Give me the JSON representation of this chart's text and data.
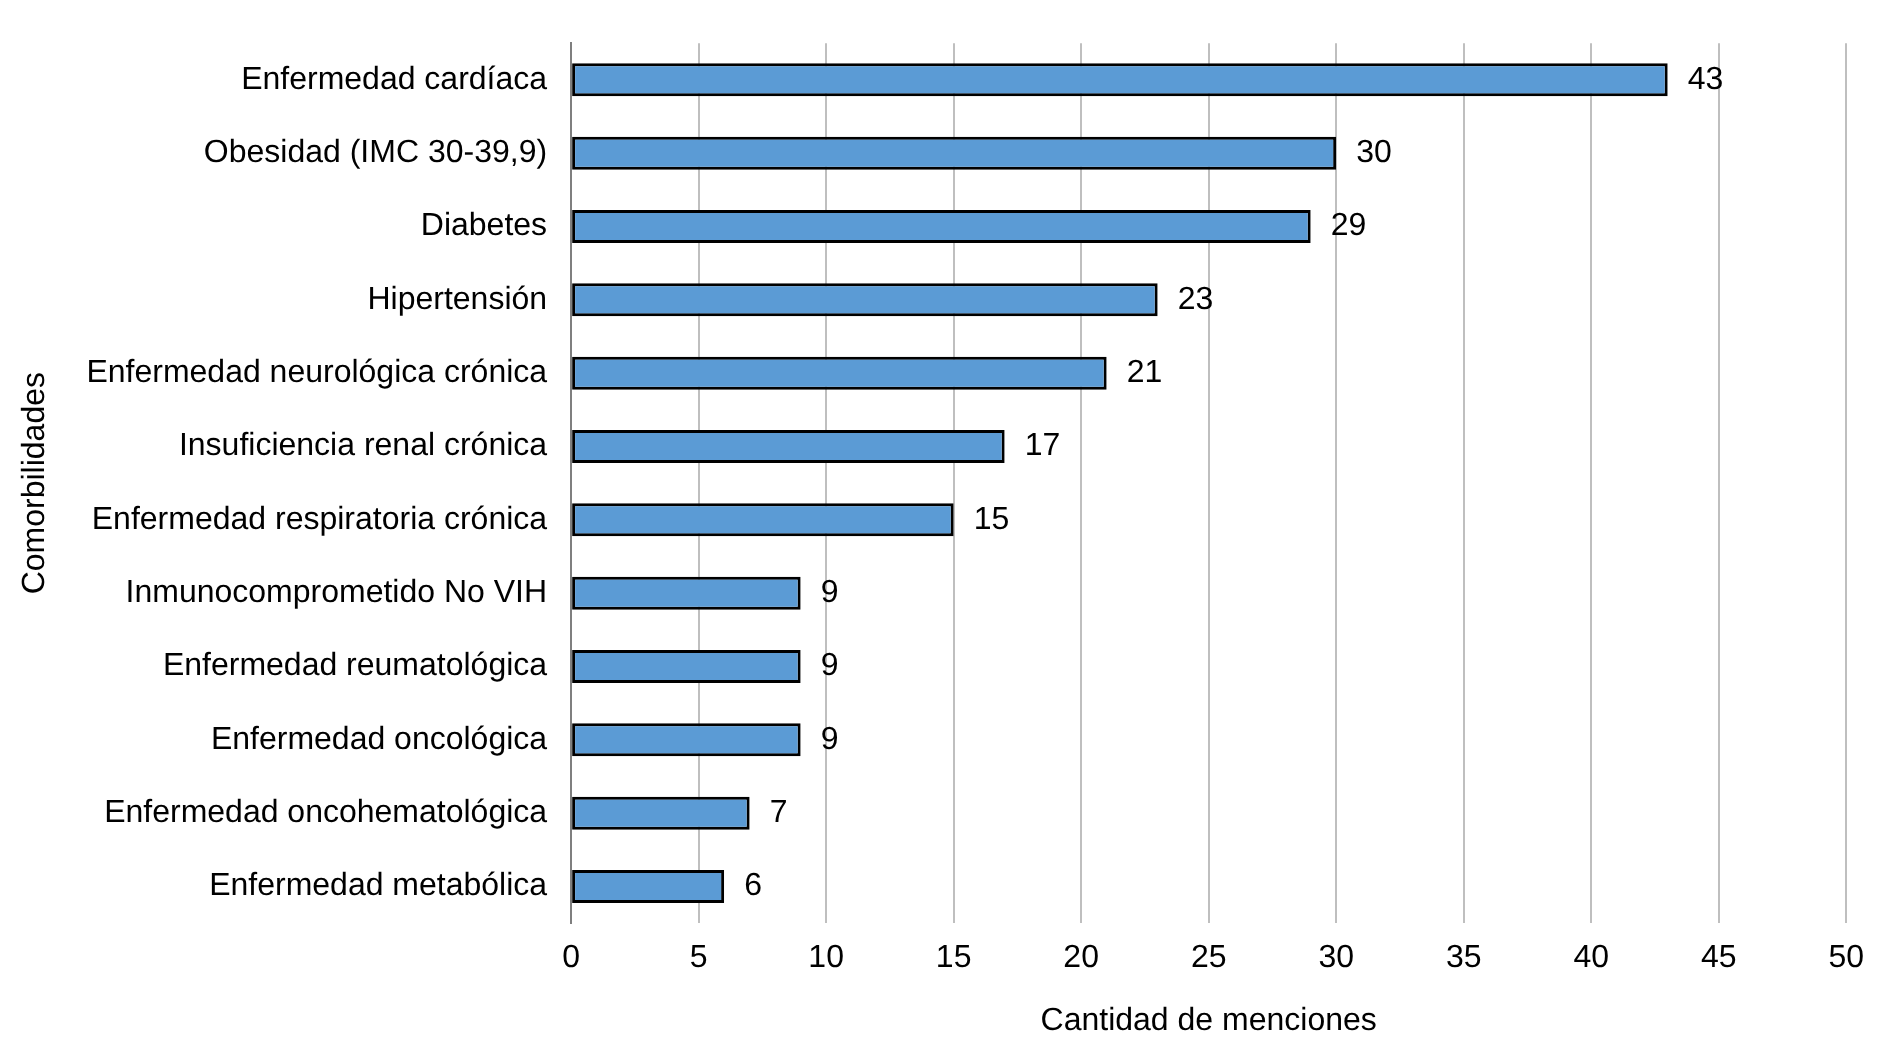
{
  "chart_data": {
    "type": "bar",
    "orientation": "horizontal",
    "xlabel": "Cantidad de menciones",
    "ylabel": "Comorbilidades",
    "categories": [
      "Enfermedad cardíaca",
      "Obesidad (IMC 30-39,9)",
      "Diabetes",
      "Hipertensión",
      "Enfermedad neurológica crónica",
      "Insuficiencia renal crónica",
      "Enfermedad respiratoria crónica",
      "Inmunocomprometido No VIH",
      "Enfermedad reumatológica",
      "Enfermedad oncológica",
      "Enfermedad oncohematológica",
      "Enfermedad metabólica"
    ],
    "values": [
      43,
      30,
      29,
      23,
      21,
      17,
      15,
      9,
      9,
      9,
      7,
      6
    ],
    "color": "#5b9bd5",
    "xlim": [
      0,
      50
    ],
    "xticks": [
      0,
      5,
      10,
      15,
      20,
      25,
      30,
      35,
      40,
      45,
      50
    ],
    "grid": "x",
    "data_labels": true
  }
}
